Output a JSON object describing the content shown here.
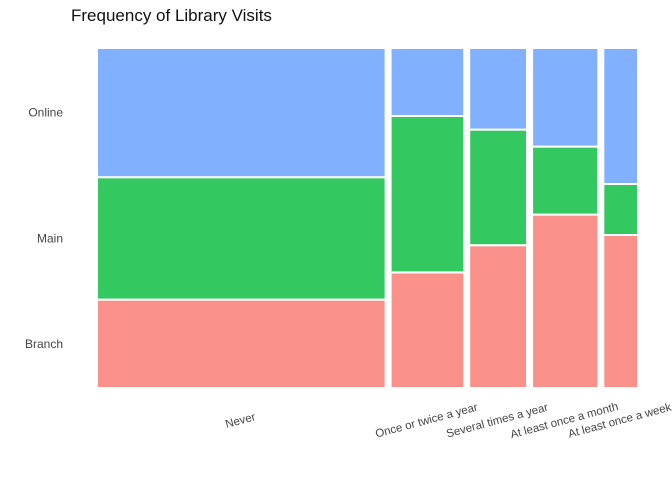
{
  "chart_data": {
    "type": "mosaic",
    "title": "Frequency of Library Visits",
    "xlabel": "",
    "ylabel": "",
    "categories": [
      "Never",
      "Once or twice a year",
      "Several times a year",
      "At least once a month",
      "At least once a week"
    ],
    "category_shares": [
      0.549,
      0.14,
      0.11,
      0.126,
      0.066
    ],
    "series": [
      {
        "name": "Branch",
        "values": [
          0.26,
          0.34,
          0.42,
          0.51,
          0.45
        ],
        "color": "#F8766D"
      },
      {
        "name": "Main",
        "values": [
          0.36,
          0.46,
          0.34,
          0.2,
          0.15
        ],
        "color": "#00BA38"
      },
      {
        "name": "Online",
        "values": [
          0.38,
          0.2,
          0.24,
          0.29,
          0.4
        ],
        "color": "#619CFF"
      }
    ],
    "ylim": [
      0,
      1
    ],
    "grid": false,
    "legend": "none"
  }
}
